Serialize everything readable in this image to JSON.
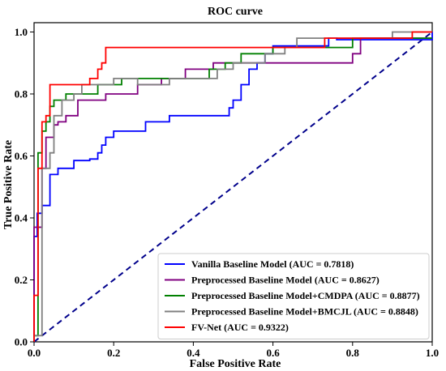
{
  "chart_data": {
    "type": "line",
    "title": "ROC curve",
    "xlabel": "False Positive Rate",
    "ylabel": "True Positive Rate",
    "xlim": [
      0,
      1
    ],
    "ylim": [
      0,
      1.03
    ],
    "xticks": [
      "0.0",
      "0.2",
      "0.4",
      "0.6",
      "0.8",
      "1.0"
    ],
    "yticks": [
      "0.0",
      "0.2",
      "0.4",
      "0.6",
      "0.8",
      "1.0"
    ],
    "grid": false,
    "legend_position": "bottom-right",
    "diagonal": {
      "color": "#00008b",
      "style": "dashed",
      "x": [
        0,
        1
      ],
      "y": [
        0,
        1
      ]
    },
    "series": [
      {
        "name": "Vanilla Baseline Model (AUC = 0.7818)",
        "color": "#0000ff",
        "x": [
          0,
          0,
          0.008,
          0.008,
          0.02,
          0.02,
          0.04,
          0.04,
          0.06,
          0.06,
          0.1,
          0.1,
          0.14,
          0.14,
          0.16,
          0.16,
          0.17,
          0.17,
          0.18,
          0.18,
          0.2,
          0.2,
          0.28,
          0.28,
          0.34,
          0.34,
          0.49,
          0.49,
          0.5,
          0.5,
          0.52,
          0.52,
          0.54,
          0.54,
          0.56,
          0.56,
          0.58,
          0.58,
          0.6,
          0.6,
          0.74,
          0.74,
          0.76,
          0.76,
          1.0,
          1.0
        ],
        "y": [
          0,
          0.34,
          0.34,
          0.415,
          0.415,
          0.44,
          0.44,
          0.54,
          0.54,
          0.56,
          0.56,
          0.585,
          0.585,
          0.59,
          0.59,
          0.61,
          0.61,
          0.635,
          0.635,
          0.66,
          0.66,
          0.68,
          0.68,
          0.71,
          0.71,
          0.73,
          0.73,
          0.755,
          0.755,
          0.78,
          0.78,
          0.83,
          0.83,
          0.88,
          0.88,
          0.9,
          0.9,
          0.93,
          0.93,
          0.955,
          0.955,
          0.98,
          0.98,
          0.975,
          0.975,
          1.0
        ]
      },
      {
        "name": "Preprocessed Baseline Model (AUC = 0.8627)",
        "color": "#800080",
        "x": [
          0,
          0,
          0.02,
          0.02,
          0.03,
          0.03,
          0.05,
          0.05,
          0.06,
          0.06,
          0.08,
          0.08,
          0.11,
          0.11,
          0.18,
          0.18,
          0.26,
          0.26,
          0.32,
          0.32,
          0.38,
          0.38,
          0.45,
          0.45,
          0.54,
          0.54,
          0.72,
          0.72,
          0.8,
          0.8,
          0.82,
          0.82,
          1.0
        ],
        "y": [
          0,
          0.37,
          0.37,
          0.56,
          0.56,
          0.66,
          0.66,
          0.7,
          0.7,
          0.71,
          0.71,
          0.73,
          0.73,
          0.78,
          0.78,
          0.8,
          0.8,
          0.83,
          0.83,
          0.85,
          0.85,
          0.88,
          0.88,
          0.9,
          0.9,
          0.9,
          0.9,
          0.9,
          0.9,
          0.93,
          0.93,
          0.98,
          0.98
        ]
      },
      {
        "name": "Preprocessed Baseline Model+CMDPA (AUC = 0.8877)",
        "color": "#008000",
        "x": [
          0,
          0,
          0.01,
          0.01,
          0.02,
          0.02,
          0.03,
          0.03,
          0.04,
          0.04,
          0.05,
          0.05,
          0.08,
          0.08,
          0.16,
          0.16,
          0.22,
          0.22,
          0.3,
          0.3,
          0.36,
          0.36,
          0.44,
          0.44,
          0.48,
          0.48,
          0.52,
          0.52,
          0.6,
          0.6,
          0.8,
          0.8,
          1.0
        ],
        "y": [
          0,
          0.02,
          0.02,
          0.61,
          0.61,
          0.68,
          0.68,
          0.71,
          0.71,
          0.76,
          0.76,
          0.78,
          0.78,
          0.8,
          0.8,
          0.83,
          0.83,
          0.85,
          0.85,
          0.85,
          0.85,
          0.85,
          0.85,
          0.88,
          0.88,
          0.9,
          0.9,
          0.93,
          0.93,
          0.95,
          0.95,
          0.98,
          0.98
        ]
      },
      {
        "name": "Preprocessed Baseline Model+BMCJL (AUC = 0.8848)",
        "color": "#808080",
        "x": [
          0,
          0,
          0.02,
          0.02,
          0.04,
          0.04,
          0.05,
          0.05,
          0.07,
          0.07,
          0.1,
          0.1,
          0.12,
          0.12,
          0.2,
          0.2,
          0.26,
          0.26,
          0.34,
          0.34,
          0.46,
          0.46,
          0.5,
          0.5,
          0.58,
          0.58,
          0.63,
          0.63,
          0.66,
          0.66,
          0.9,
          0.9,
          1.0
        ],
        "y": [
          0,
          0.02,
          0.02,
          0.56,
          0.56,
          0.61,
          0.61,
          0.73,
          0.73,
          0.78,
          0.78,
          0.8,
          0.8,
          0.83,
          0.83,
          0.85,
          0.85,
          0.83,
          0.83,
          0.85,
          0.85,
          0.88,
          0.88,
          0.9,
          0.9,
          0.93,
          0.93,
          0.95,
          0.95,
          0.98,
          0.98,
          1.0,
          1.0
        ]
      },
      {
        "name": "FV-Net (AUC = 0.9322)",
        "color": "#ff0000",
        "x": [
          0,
          0,
          0.01,
          0.01,
          0.02,
          0.02,
          0.03,
          0.03,
          0.04,
          0.04,
          0.14,
          0.14,
          0.16,
          0.16,
          0.17,
          0.17,
          0.18,
          0.18,
          0.73,
          0.73,
          0.95,
          0.95,
          1.0
        ],
        "y": [
          0,
          0.15,
          0.15,
          0.56,
          0.56,
          0.71,
          0.71,
          0.73,
          0.73,
          0.83,
          0.83,
          0.85,
          0.85,
          0.88,
          0.88,
          0.9,
          0.9,
          0.95,
          0.95,
          0.98,
          0.98,
          1.0,
          1.0
        ]
      }
    ]
  }
}
